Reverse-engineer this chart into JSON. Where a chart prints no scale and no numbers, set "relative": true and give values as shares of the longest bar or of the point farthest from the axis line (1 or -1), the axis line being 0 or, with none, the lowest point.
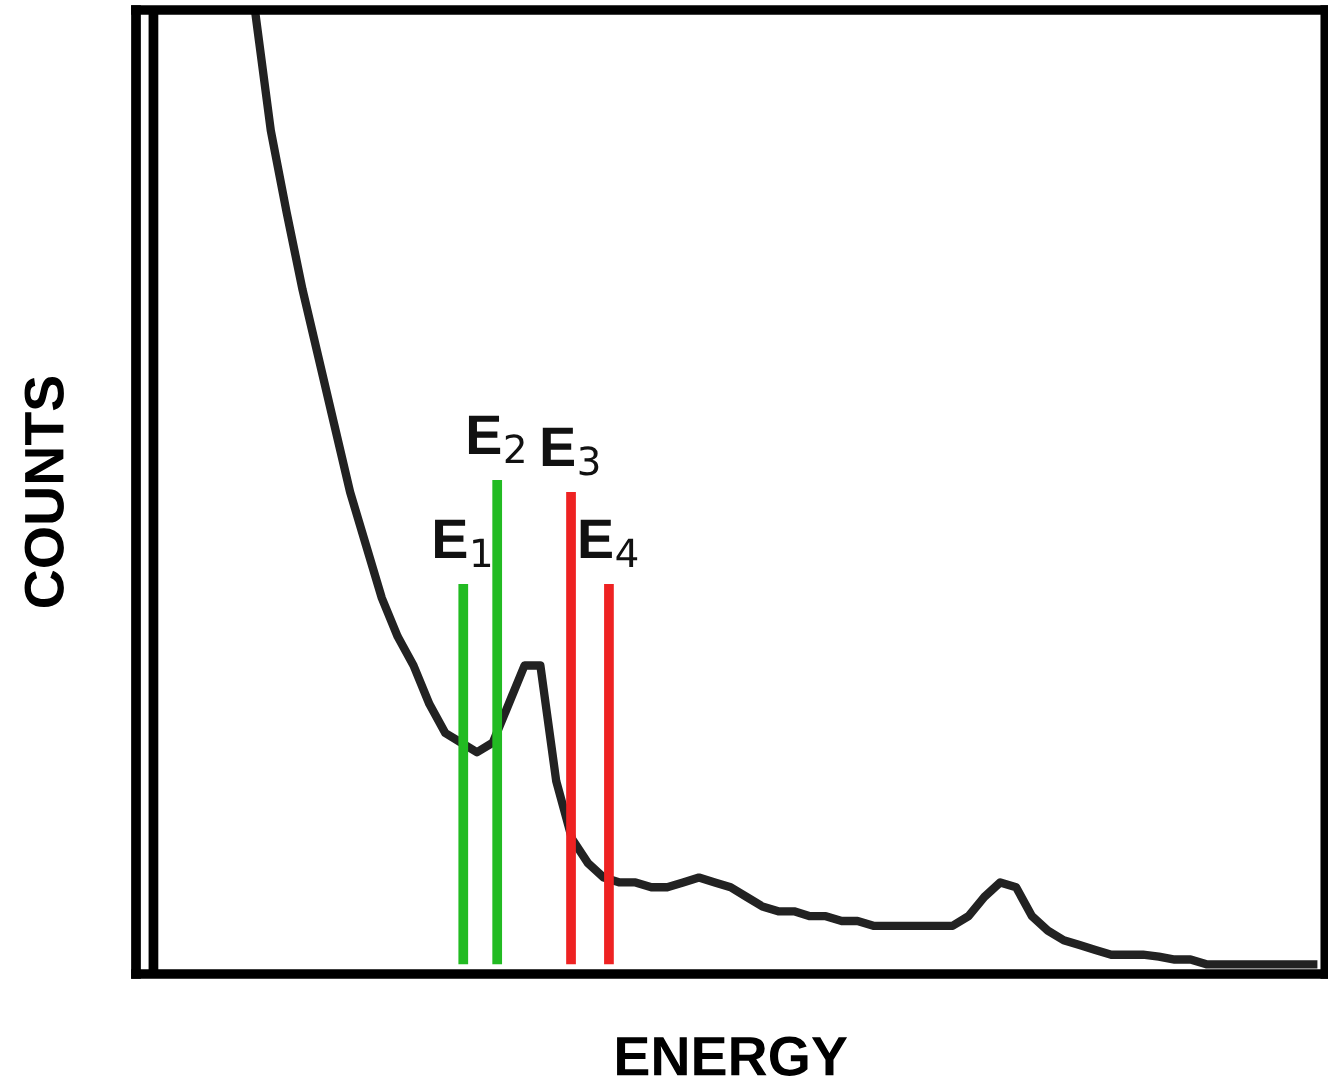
{
  "chart_data": {
    "type": "line",
    "xlabel": "ENERGY",
    "ylabel": "COUNTS",
    "relative": true,
    "tick_labels": false,
    "grid": false,
    "legend": false,
    "categories": [
      null,
      null,
      null,
      null,
      null,
      null,
      null,
      null,
      null,
      null,
      null,
      null,
      null,
      null,
      null,
      null,
      null,
      null,
      null,
      null,
      null,
      null,
      null,
      null,
      null,
      null,
      null,
      null,
      null,
      null,
      null,
      null,
      null,
      null,
      null,
      null,
      null,
      null,
      null,
      null,
      null,
      null,
      null,
      null,
      null,
      null,
      null,
      null,
      null,
      null,
      null,
      null,
      null,
      null,
      null,
      null,
      null,
      null,
      null,
      null,
      null,
      null,
      null,
      null,
      null,
      null,
      null,
      null,
      null,
      null,
      null,
      null,
      null,
      null
    ],
    "series": [
      {
        "color": "#222222",
        "values": [
          null,
          null,
          null,
          null,
          null,
          null,
          1,
          0.875,
          0.79,
          0.71,
          0.64,
          0.57,
          0.5,
          0.445,
          0.39,
          0.35,
          0.32,
          0.28,
          0.25,
          0.24,
          0.23,
          0.24,
          0.28,
          0.32,
          0.32,
          0.2,
          0.14,
          0.115,
          0.1,
          0.095,
          0.095,
          0.09,
          0.09,
          0.095,
          0.1,
          0.095,
          0.09,
          0.08,
          0.07,
          0.065,
          0.065,
          0.06,
          0.06,
          0.055,
          0.055,
          0.05,
          0.05,
          0.05,
          0.05,
          0.05,
          0.05,
          0.06,
          0.08,
          0.095,
          0.09,
          0.06,
          0.045,
          0.035,
          0.03,
          0.025,
          0.02,
          0.02,
          0.02,
          0.018,
          0.015,
          0.015,
          0.01,
          0.01,
          0.01,
          0.01,
          0.01,
          0.01,
          0.01,
          0.01
        ]
      }
    ],
    "annotations": [
      "E$_{1}$",
      "E$_{2}$",
      "E$_{3}$",
      "E$_{4}$"
    ]
  }
}
